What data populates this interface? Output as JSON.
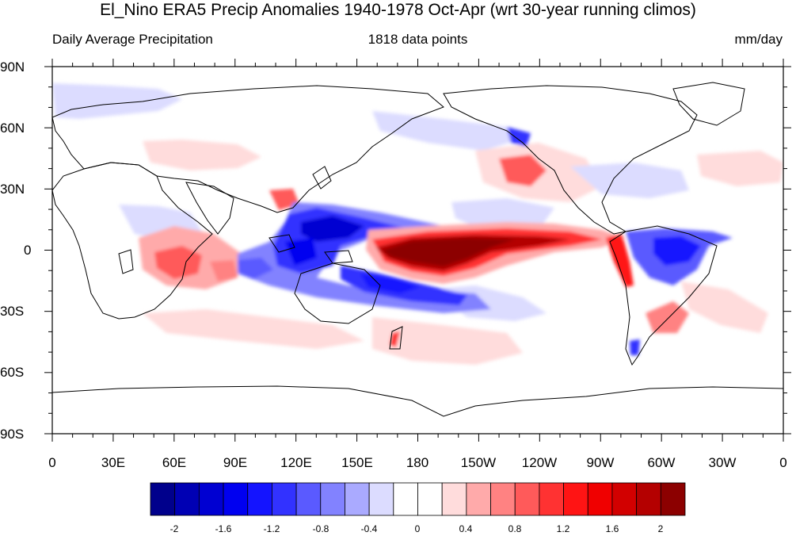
{
  "title": "El_Nino ERA5 Precip Anomalies 1940-1978 Oct-Apr (wrt 30-year running climos)",
  "left_subtitle": "Daily Average Precipitation",
  "center_subtitle": "1818 data points",
  "right_subtitle": "mm/day",
  "lat_labels": [
    "90N",
    "60N",
    "30N",
    "0",
    "30S",
    "60S",
    "90S"
  ],
  "lon_labels": [
    "0",
    "30E",
    "60E",
    "90E",
    "120E",
    "150E",
    "180",
    "150W",
    "120W",
    "90W",
    "60W",
    "30W",
    "0"
  ],
  "colorbar": {
    "colors": [
      "#00008c",
      "#0000b4",
      "#0000d2",
      "#0000f0",
      "#1414ff",
      "#3232ff",
      "#5a5aff",
      "#8282ff",
      "#aaaaff",
      "#dcdcff",
      "#ffffff",
      "#ffffff",
      "#ffdcdc",
      "#ffaaaa",
      "#ff8282",
      "#ff5a5a",
      "#ff3232",
      "#ff1414",
      "#f00000",
      "#d20000",
      "#b40000",
      "#8c0000"
    ],
    "labels": [
      "-2",
      "-1.6",
      "-1.2",
      "-0.8",
      "-0.4",
      "0",
      "0.4",
      "0.8",
      "1.2",
      "1.6",
      "2"
    ]
  }
}
